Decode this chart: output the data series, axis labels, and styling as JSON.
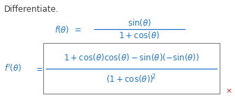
{
  "background_color": "#ffffff",
  "title_text": "Differentiate.",
  "title_color": "#404040",
  "title_fontsize": 8.5,
  "math_color": "#2176C7",
  "math_fontsize": 8.5,
  "box_color": "#808080",
  "cross_color": "#cc2222",
  "cross_fontsize": 8,
  "fig_width": 3.37,
  "fig_height": 1.47,
  "dpi": 100
}
